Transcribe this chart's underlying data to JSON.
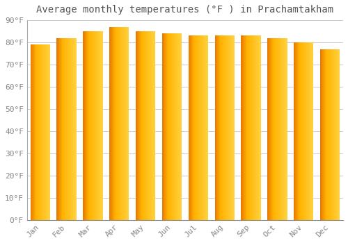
{
  "months": [
    "Jan",
    "Feb",
    "Mar",
    "Apr",
    "May",
    "Jun",
    "Jul",
    "Aug",
    "Sep",
    "Oct",
    "Nov",
    "Dec"
  ],
  "values": [
    79,
    82,
    85,
    87,
    85,
    84,
    83,
    83,
    83,
    82,
    80,
    77
  ],
  "title": "Average monthly temperatures (°F ) in Prachamtakham",
  "ylim": [
    0,
    90
  ],
  "yticks": [
    0,
    10,
    20,
    30,
    40,
    50,
    60,
    70,
    80,
    90
  ],
  "ytick_labels": [
    "0°F",
    "10°F",
    "20°F",
    "30°F",
    "40°F",
    "50°F",
    "60°F",
    "70°F",
    "80°F",
    "90°F"
  ],
  "background_color": "#FFFFFF",
  "grid_color": "#CCCCCC",
  "title_fontsize": 10,
  "tick_fontsize": 8,
  "bar_color_left": "#E87800",
  "bar_color_center": "#FFB300",
  "bar_color_right": "#FFD060",
  "bar_width": 0.75
}
